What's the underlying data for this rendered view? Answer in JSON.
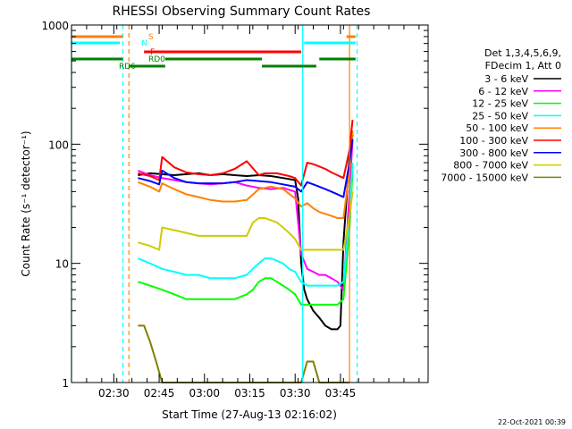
{
  "chart_data": {
    "type": "line",
    "title": "RHESSI Observing Summary Count Rates",
    "xlabel": "Start Time (27-Aug-13 02:16:02)",
    "ylabel": "Count Rate (s⁻¹ detector⁻¹)",
    "y_scale": "log",
    "ylim": [
      1,
      1000
    ],
    "y_ticks": [
      {
        "value": 1,
        "label": "1"
      },
      {
        "value": 10,
        "label": "10"
      },
      {
        "value": 100,
        "label": "100"
      },
      {
        "value": 1000,
        "label": "1000"
      }
    ],
    "xlim_min": [
      0,
      118
    ],
    "x_ticks": [
      {
        "value": 14,
        "label": "02:30"
      },
      {
        "value": 29,
        "label": "02:45"
      },
      {
        "value": 44,
        "label": "03:00"
      },
      {
        "value": 59,
        "label": "03:15"
      },
      {
        "value": 74,
        "label": "03:30"
      },
      {
        "value": 89,
        "label": "03:45"
      }
    ],
    "legend_header": [
      "Det 1,3,4,5,6,9,",
      "FDecim 1, Att 0"
    ],
    "series": [
      {
        "name": "3 - 6 keV",
        "color": "#000000",
        "x": [
          22,
          26,
          30,
          34,
          38,
          42,
          46,
          50,
          54,
          58,
          62,
          66,
          70,
          74,
          75,
          76,
          77,
          78,
          80,
          82,
          84,
          86,
          88,
          89,
          90,
          92,
          93
        ],
        "y": [
          55,
          57,
          56,
          55,
          56,
          57,
          55,
          56,
          55,
          54,
          55,
          54,
          52,
          50,
          35,
          10,
          6,
          5,
          4,
          3.5,
          3,
          2.8,
          2.8,
          3,
          15,
          80,
          120
        ]
      },
      {
        "name": "6 - 12 keV",
        "color": "#ff00ff",
        "x": [
          22,
          26,
          30,
          34,
          38,
          42,
          46,
          50,
          54,
          58,
          62,
          66,
          70,
          74,
          76,
          78,
          80,
          82,
          84,
          86,
          88,
          90,
          92,
          93
        ],
        "y": [
          60,
          55,
          52,
          50,
          48,
          47,
          46,
          47,
          48,
          45,
          43,
          42,
          43,
          40,
          12,
          9,
          8.5,
          8,
          8,
          7.5,
          7,
          6,
          40,
          110
        ]
      },
      {
        "name": "12 - 25 keV",
        "color": "#00ff00",
        "x": [
          22,
          26,
          30,
          34,
          38,
          42,
          46,
          50,
          54,
          58,
          60,
          62,
          64,
          66,
          68,
          70,
          72,
          74,
          76,
          78,
          80,
          82,
          84,
          86,
          88,
          90,
          92,
          93
        ],
        "y": [
          7,
          6.5,
          6,
          5.5,
          5,
          5,
          5,
          5,
          5,
          5.5,
          6,
          7,
          7.5,
          7.5,
          7,
          6.5,
          6,
          5.5,
          4.5,
          4.5,
          4.5,
          4.5,
          4.5,
          4.5,
          4.5,
          5,
          20,
          60
        ]
      },
      {
        "name": "25 - 50 keV",
        "color": "#00ffff",
        "x": [
          22,
          26,
          30,
          34,
          38,
          42,
          46,
          50,
          54,
          58,
          60,
          62,
          64,
          66,
          68,
          70,
          72,
          74,
          76,
          78,
          80,
          82,
          84,
          86,
          88,
          90,
          92,
          93
        ],
        "y": [
          11,
          10,
          9,
          8.5,
          8,
          8,
          7.5,
          7.5,
          7.5,
          8,
          9,
          10,
          11,
          11,
          10.5,
          10,
          9,
          8.5,
          7,
          6.5,
          6.5,
          6.5,
          6.5,
          6.5,
          6.5,
          7,
          25,
          70
        ]
      },
      {
        "name": "50 - 100 keV",
        "color": "#ff8000",
        "x": [
          22,
          26,
          29,
          30,
          34,
          38,
          42,
          46,
          50,
          54,
          58,
          62,
          66,
          70,
          74,
          76,
          78,
          80,
          82,
          84,
          86,
          88,
          90,
          92,
          93
        ],
        "y": [
          48,
          44,
          40,
          47,
          42,
          38,
          36,
          34,
          33,
          33,
          34,
          42,
          44,
          42,
          35,
          30,
          32,
          29,
          27,
          26,
          25,
          24,
          24,
          60,
          130
        ]
      },
      {
        "name": "100 - 300 keV",
        "color": "#ff0000",
        "x": [
          22,
          26,
          29,
          30,
          34,
          38,
          42,
          46,
          50,
          54,
          58,
          62,
          64,
          68,
          72,
          74,
          76,
          78,
          80,
          82,
          84,
          86,
          88,
          90,
          92,
          93
        ],
        "y": [
          57,
          54,
          50,
          78,
          64,
          58,
          56,
          55,
          57,
          62,
          72,
          55,
          57,
          57,
          54,
          52,
          45,
          70,
          68,
          65,
          62,
          58,
          55,
          52,
          90,
          160
        ]
      },
      {
        "name": "300 - 800 keV",
        "color": "#0000ff",
        "x": [
          22,
          26,
          29,
          30,
          34,
          38,
          42,
          46,
          50,
          54,
          58,
          62,
          66,
          70,
          74,
          76,
          78,
          80,
          82,
          84,
          86,
          88,
          90,
          92,
          93
        ],
        "y": [
          52,
          49,
          46,
          60,
          52,
          48,
          47,
          47,
          47,
          48,
          50,
          49,
          48,
          46,
          44,
          40,
          48,
          46,
          44,
          42,
          40,
          38,
          36,
          70,
          110
        ]
      },
      {
        "name": "800 - 7000 keV",
        "color": "#cccc00",
        "x": [
          22,
          26,
          29,
          30,
          34,
          38,
          42,
          46,
          50,
          54,
          58,
          60,
          62,
          64,
          66,
          68,
          70,
          72,
          74,
          76,
          78,
          80,
          82,
          84,
          86,
          88,
          90,
          92,
          93
        ],
        "y": [
          15,
          14,
          13,
          20,
          19,
          18,
          17,
          17,
          17,
          17,
          17,
          22,
          24,
          24,
          23,
          22,
          20,
          18,
          16,
          13,
          13,
          13,
          13,
          13,
          13,
          13,
          13,
          25,
          40
        ]
      },
      {
        "name": "7000 - 15000 keV",
        "color": "#808000",
        "x": [
          22,
          24,
          26,
          28,
          30,
          32,
          34,
          36,
          38,
          40,
          42,
          44,
          46,
          48,
          50,
          52,
          54,
          56,
          58,
          60,
          62,
          64,
          66,
          68,
          70,
          72,
          74,
          76,
          78,
          80,
          82,
          84,
          86,
          88,
          90,
          92
        ],
        "y": [
          3,
          3,
          2.2,
          1.5,
          1,
          1,
          1,
          1,
          1,
          1,
          1,
          1,
          1,
          1,
          1,
          1,
          1,
          1,
          1,
          1,
          1,
          1,
          1,
          1,
          1,
          1,
          1,
          1,
          1.5,
          1.5,
          1,
          1,
          1,
          1,
          1,
          1
        ]
      }
    ],
    "state_bars": [
      {
        "label": "S",
        "color": "#ff8000",
        "segments": [
          [
            0,
            17
          ],
          [
            91,
            94
          ]
        ]
      },
      {
        "label": "N",
        "color": "#00ffff",
        "segments": [
          [
            0,
            16
          ],
          [
            77,
            94
          ]
        ]
      },
      {
        "label": "F",
        "color": "#ff0000",
        "segments": [
          [
            24,
            76
          ]
        ]
      },
      {
        "label": "RD0",
        "color": "#008000",
        "segments": [
          [
            0,
            17
          ],
          [
            31,
            63
          ],
          [
            82,
            94
          ]
        ]
      },
      {
        "label": "RD6",
        "color": "#008000",
        "segments": [
          [
            19,
            31
          ],
          [
            63,
            81
          ]
        ]
      }
    ],
    "vertical_markers": [
      {
        "x": 0,
        "color": "#00ffff",
        "style": "solid"
      },
      {
        "x": 17,
        "color": "#00ffff",
        "style": "dashed"
      },
      {
        "x": 19,
        "color": "#ff8000",
        "style": "dashed"
      },
      {
        "x": 76.5,
        "color": "#00ffff",
        "style": "solid"
      },
      {
        "x": 92,
        "color": "#ff8000",
        "style": "solid"
      },
      {
        "x": 94.5,
        "color": "#00ffff",
        "style": "dashed"
      }
    ],
    "timestamp": "22-Oct-2021 00:39"
  }
}
